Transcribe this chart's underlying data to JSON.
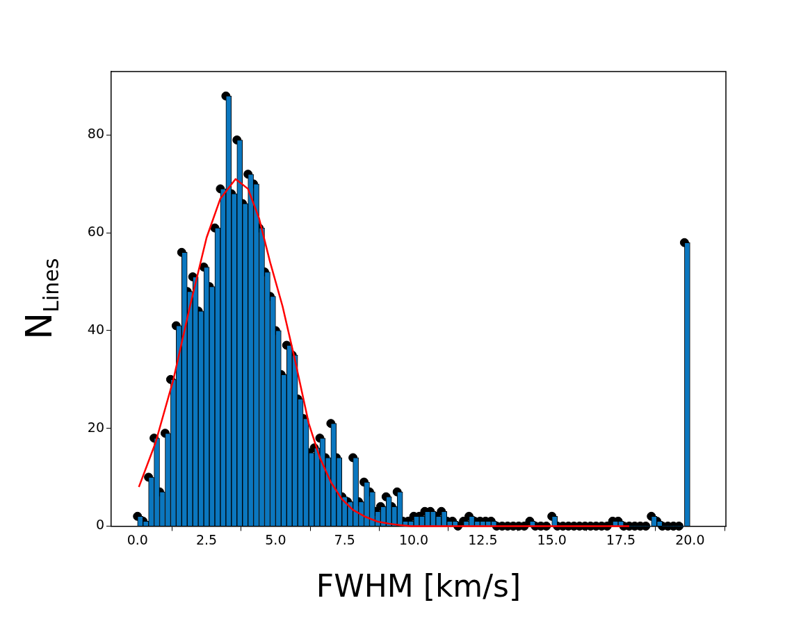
{
  "chart_data": {
    "type": "histogram",
    "xlabel": "FWHM [km/s]",
    "ylabel": "N$_{Lines}$",
    "bins": [
      0,
      0.2,
      0.4,
      0.6,
      0.8,
      1,
      1.2,
      1.4,
      1.6,
      1.8,
      2,
      2.2,
      2.4,
      2.6,
      2.8,
      3,
      3.2,
      3.4,
      3.6,
      3.8,
      4,
      4.2,
      4.4,
      4.6,
      4.8,
      5,
      5.2,
      5.4,
      5.6,
      5.8,
      6,
      6.2,
      6.4,
      6.6,
      6.8,
      7,
      7.2,
      7.4,
      7.6,
      7.8,
      8,
      8.2,
      8.4,
      8.6,
      8.8,
      9,
      9.2,
      9.4,
      9.6,
      9.8,
      10,
      10.2,
      10.4,
      10.6,
      10.8,
      11,
      11.2,
      11.4,
      11.6,
      11.8,
      12,
      12.2,
      12.4,
      12.6,
      12.8,
      13,
      13.2,
      13.4,
      13.6,
      13.8,
      14,
      14.2,
      14.4,
      14.6,
      14.8,
      15,
      15.2,
      15.4,
      15.6,
      15.8,
      16,
      16.2,
      16.4,
      16.6,
      16.8,
      17,
      17.2,
      17.4,
      17.6,
      17.8,
      18,
      18.2,
      18.4,
      18.6,
      18.8,
      19,
      19.2,
      19.4,
      19.6,
      19.8,
      20
    ],
    "values": [
      2,
      1,
      10,
      18,
      7,
      19,
      30,
      41,
      56,
      48,
      51,
      44,
      53,
      49,
      61,
      69,
      88,
      68,
      79,
      66,
      72,
      70,
      61,
      52,
      47,
      40,
      31,
      37,
      35,
      26,
      22,
      15,
      16,
      18,
      14,
      21,
      14,
      6,
      5,
      14,
      5,
      9,
      7,
      3,
      4,
      6,
      4,
      7,
      1,
      1,
      2,
      2,
      3,
      3,
      2,
      3,
      1,
      1,
      0,
      1,
      2,
      1,
      1,
      1,
      1,
      0,
      0,
      0,
      0,
      0,
      0,
      1,
      0,
      0,
      0,
      2,
      0,
      0,
      0,
      0,
      0,
      0,
      0,
      0,
      0,
      0,
      1,
      1,
      0,
      0,
      0,
      0,
      0,
      2,
      1,
      0,
      0,
      0,
      0,
      58
    ],
    "color": "#0b77bf",
    "series": [
      {
        "type": "scatter",
        "color": "#000000",
        "marker": "circle",
        "x": [
          0,
          0.2,
          0.4,
          0.6,
          0.8,
          1,
          1.2,
          1.4,
          1.6,
          1.8,
          2,
          2.2,
          2.4,
          2.6,
          2.8,
          3,
          3.2,
          3.4,
          3.6,
          3.8,
          4,
          4.2,
          4.4,
          4.6,
          4.8,
          5,
          5.2,
          5.4,
          5.6,
          5.8,
          6,
          6.2,
          6.4,
          6.6,
          6.8,
          7,
          7.2,
          7.4,
          7.6,
          7.8,
          8,
          8.2,
          8.4,
          8.6,
          8.8,
          9,
          9.2,
          9.4,
          9.6,
          9.8,
          10,
          10.2,
          10.4,
          10.6,
          10.8,
          11,
          11.2,
          11.4,
          11.6,
          11.8,
          12,
          12.2,
          12.4,
          12.6,
          12.8,
          13,
          13.2,
          13.4,
          13.6,
          13.8,
          14,
          14.2,
          14.4,
          14.6,
          14.8,
          15,
          15.2,
          15.4,
          15.6,
          15.8,
          16,
          16.2,
          16.4,
          16.6,
          16.8,
          17,
          17.2,
          17.4,
          17.6,
          17.8,
          18,
          18.2,
          18.4,
          18.6,
          18.8,
          19,
          19.2,
          19.4,
          19.6,
          19.8
        ],
        "values": [
          2,
          1,
          10,
          18,
          7,
          19,
          30,
          41,
          56,
          48,
          51,
          44,
          53,
          49,
          61,
          69,
          88,
          68,
          79,
          66,
          72,
          70,
          61,
          52,
          47,
          40,
          31,
          37,
          35,
          26,
          22,
          15,
          16,
          18,
          14,
          21,
          14,
          6,
          5,
          14,
          5,
          9,
          7,
          3,
          4,
          6,
          4,
          7,
          1,
          1,
          2,
          2,
          3,
          3,
          2,
          3,
          1,
          1,
          0,
          1,
          2,
          1,
          1,
          1,
          1,
          0,
          0,
          0,
          0,
          0,
          0,
          1,
          0,
          0,
          0,
          2,
          0,
          0,
          0,
          0,
          0,
          0,
          0,
          0,
          0,
          0,
          1,
          1,
          0,
          0,
          0,
          0,
          0,
          2,
          1,
          0,
          0,
          0,
          0,
          58
        ]
      },
      {
        "type": "line",
        "color": "#ff0000",
        "marker": "none",
        "line_style": "solid",
        "x": [
          0.05,
          0.65,
          1.3,
          1.9,
          2.5,
          3.0,
          3.55,
          4.0,
          4.4,
          4.8,
          5.25,
          5.7,
          6.2,
          6.6,
          7.0,
          7.4,
          7.8,
          8.25,
          8.7,
          9.1,
          9.5,
          9.9,
          17.8
        ],
        "values": [
          8,
          17,
          30,
          45,
          59,
          67,
          71,
          69,
          63,
          54,
          45,
          34,
          21,
          14,
          9,
          5.5,
          3.3,
          1.9,
          0.9,
          0.5,
          0.2,
          0,
          0
        ]
      }
    ],
    "xlim": [
      -0.95,
      21.3
    ],
    "ylim": [
      0,
      93
    ],
    "xticks": [
      {
        "value": 0,
        "label": "0.0"
      },
      {
        "value": 2.5,
        "label": "2.5"
      },
      {
        "value": 5,
        "label": "5.0"
      },
      {
        "value": 7.5,
        "label": "7.5"
      },
      {
        "value": 10,
        "label": "10.0"
      },
      {
        "value": 12.5,
        "label": "12.5"
      },
      {
        "value": 15,
        "label": "15.0"
      },
      {
        "value": 17.5,
        "label": "17.5"
      },
      {
        "value": 20,
        "label": "20.0"
      }
    ],
    "yticks": [
      0,
      20,
      40,
      60,
      80
    ],
    "grid": false,
    "legend": false
  }
}
